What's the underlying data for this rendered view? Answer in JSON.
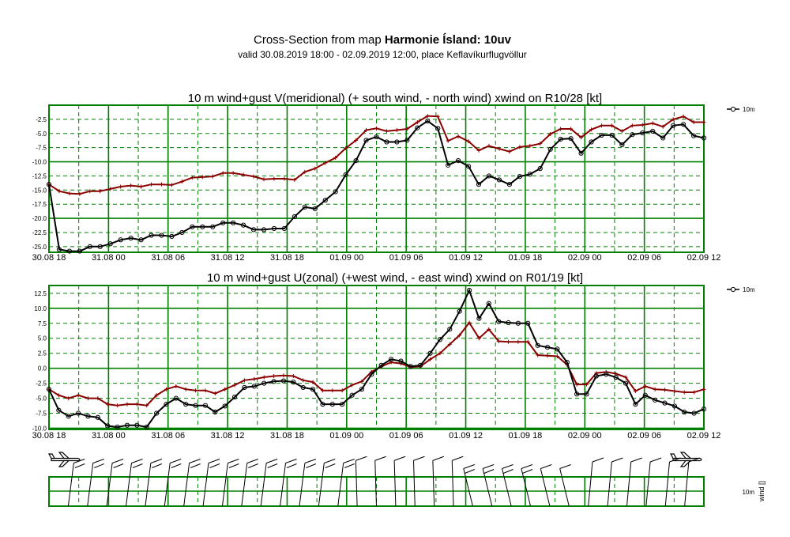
{
  "header": {
    "title_prefix": "Cross-Section from map ",
    "title_bold": "Harmonie Ísland: 10uv",
    "subtitle": "valid 30.08.2019 18:00 - 02.09.2019 12:00, place Keflavíkurflugvöllur"
  },
  "colors": {
    "grid": "#008000",
    "wind": "#000000",
    "gust": "#8b0000"
  },
  "x_tick_labels": [
    "30.08 18",
    "31.08 00",
    "31.08 06",
    "31.08 12",
    "31.08 18",
    "01.09 00",
    "01.09 06",
    "01.09 12",
    "01.09 18",
    "02.09 00",
    "02.09 06",
    "02.09 12"
  ],
  "chart_data": [
    {
      "type": "line",
      "title": "10 m wind+gust V(meridional) (+ south wind, - north wind) xwind on R10/28 [kt]",
      "ylim": [
        -26,
        0
      ],
      "y_ticks": [
        "-2.5",
        "-5.0",
        "-7.5",
        "-10.0",
        "-12.5",
        "-15.0",
        "-17.5",
        "-20.0",
        "-22.5",
        "-25.0"
      ],
      "legend_label": "10m",
      "series": [
        {
          "name": "10m",
          "marker": "circle",
          "color": "#000000",
          "values": [
            -14,
            -25.5,
            -25.8,
            -25.8,
            -25,
            -25,
            -24.5,
            -23.8,
            -23.5,
            -23.8,
            -23,
            -23,
            -23.2,
            -22.5,
            -21.5,
            -21.5,
            -21.5,
            -20.8,
            -20.8,
            -21.2,
            -22,
            -22,
            -21.8,
            -21.8,
            -19.7,
            -18,
            -18.3,
            -16.8,
            -15.3,
            -12.3,
            -9.8,
            -6.2,
            -5.6,
            -6.5,
            -6.5,
            -6.2,
            -4,
            -2.8,
            -4.1,
            -10.6,
            -9.8,
            -10.8,
            -14,
            -12.5,
            -13.2,
            -14,
            -12.6,
            -12.2,
            -11.2,
            -7.8,
            -6,
            -5.9,
            -8.5,
            -6.5,
            -5.3,
            -5.3,
            -7,
            -5.2,
            -4.9,
            -4.6,
            -5.8,
            -3.6,
            -3.4,
            -5.4,
            -5.8
          ]
        },
        {
          "name": "",
          "marker": "plus",
          "color": "#8b0000",
          "values": [
            -14,
            -15.2,
            -15.6,
            -15.7,
            -15.2,
            -15.2,
            -14.8,
            -14.4,
            -14.2,
            -14.4,
            -14,
            -14,
            -14.1,
            -13.5,
            -12.8,
            -12.7,
            -12.6,
            -12,
            -12,
            -12.3,
            -12.6,
            -13.1,
            -13,
            -13,
            -13.2,
            -11.8,
            -11.2,
            -10.2,
            -9.3,
            -7.6,
            -6.2,
            -4.4,
            -4.1,
            -4.6,
            -4.4,
            -4.2,
            -3,
            -1.9,
            -2,
            -6.3,
            -5.5,
            -6.4,
            -8,
            -7.2,
            -7.7,
            -8.2,
            -7.4,
            -7.2,
            -6.8,
            -5.1,
            -4.2,
            -4.2,
            -5.7,
            -4.3,
            -3.6,
            -3.6,
            -4.6,
            -3.6,
            -3.5,
            -3.2,
            -3.8,
            -2.5,
            -2,
            -3,
            -3
          ]
        }
      ]
    },
    {
      "type": "line",
      "title": "10 m wind+gust U(zonal) (+west wind, - east wind) xwind on R01/19 [kt]",
      "ylim": [
        -10.2,
        13.8
      ],
      "y_ticks": [
        "12.5",
        "10.0",
        "7.5",
        "5.0",
        "2.5",
        "0.0",
        "-2.5",
        "-5.0",
        "-7.5",
        "-10.0"
      ],
      "legend_label": "10m",
      "series": [
        {
          "name": "10m",
          "marker": "circle",
          "color": "#000000",
          "values": [
            -3.5,
            -7,
            -8,
            -7.5,
            -8,
            -8.2,
            -9.6,
            -9.8,
            -9.5,
            -9.5,
            -9.8,
            -7.5,
            -6,
            -5,
            -6,
            -6.2,
            -6.2,
            -7.3,
            -6.3,
            -4.8,
            -3.2,
            -3,
            -2.5,
            -2.2,
            -2.1,
            -2.3,
            -3.2,
            -3.5,
            -6,
            -6,
            -6,
            -4.5,
            -3.5,
            -1,
            0.5,
            1.5,
            1.2,
            0.3,
            0.5,
            2.5,
            4.8,
            6.5,
            9.5,
            13,
            8.3,
            10.8,
            7.8,
            7.6,
            7.5,
            7.5,
            3.8,
            3.5,
            3.2,
            1,
            -4.3,
            -4.3,
            -1.3,
            -1,
            -1.5,
            -2.5,
            -6,
            -4.5,
            -5.3,
            -5.8,
            -6.3,
            -7.3,
            -7.5,
            -6.8
          ]
        },
        {
          "name": "",
          "marker": "plus",
          "color": "#8b0000",
          "values": [
            -3.5,
            -4.5,
            -5,
            -4.5,
            -5,
            -5,
            -6,
            -6.2,
            -6,
            -6,
            -6.2,
            -4.5,
            -3.5,
            -3,
            -3.5,
            -3.7,
            -3.7,
            -4.2,
            -3.5,
            -2.8,
            -2,
            -1.8,
            -1.5,
            -1.3,
            -1.2,
            -1.3,
            -2,
            -2.3,
            -3.7,
            -3.7,
            -3.7,
            -2.8,
            -2.2,
            -0.6,
            0.3,
            1,
            0.8,
            0.2,
            0.3,
            1.5,
            2.5,
            4,
            5.5,
            7.6,
            5,
            6.5,
            4.5,
            4.4,
            4.4,
            4.4,
            2.2,
            2.1,
            2,
            0.6,
            -2.7,
            -2.7,
            -0.8,
            -0.6,
            -0.9,
            -1.5,
            -3.8,
            -3,
            -3.5,
            -3.6,
            -3.8,
            -4,
            -4,
            -3.5
          ]
        }
      ]
    }
  ],
  "wind_strip": {
    "legend_label": "10m",
    "axis_label": "wind []"
  }
}
